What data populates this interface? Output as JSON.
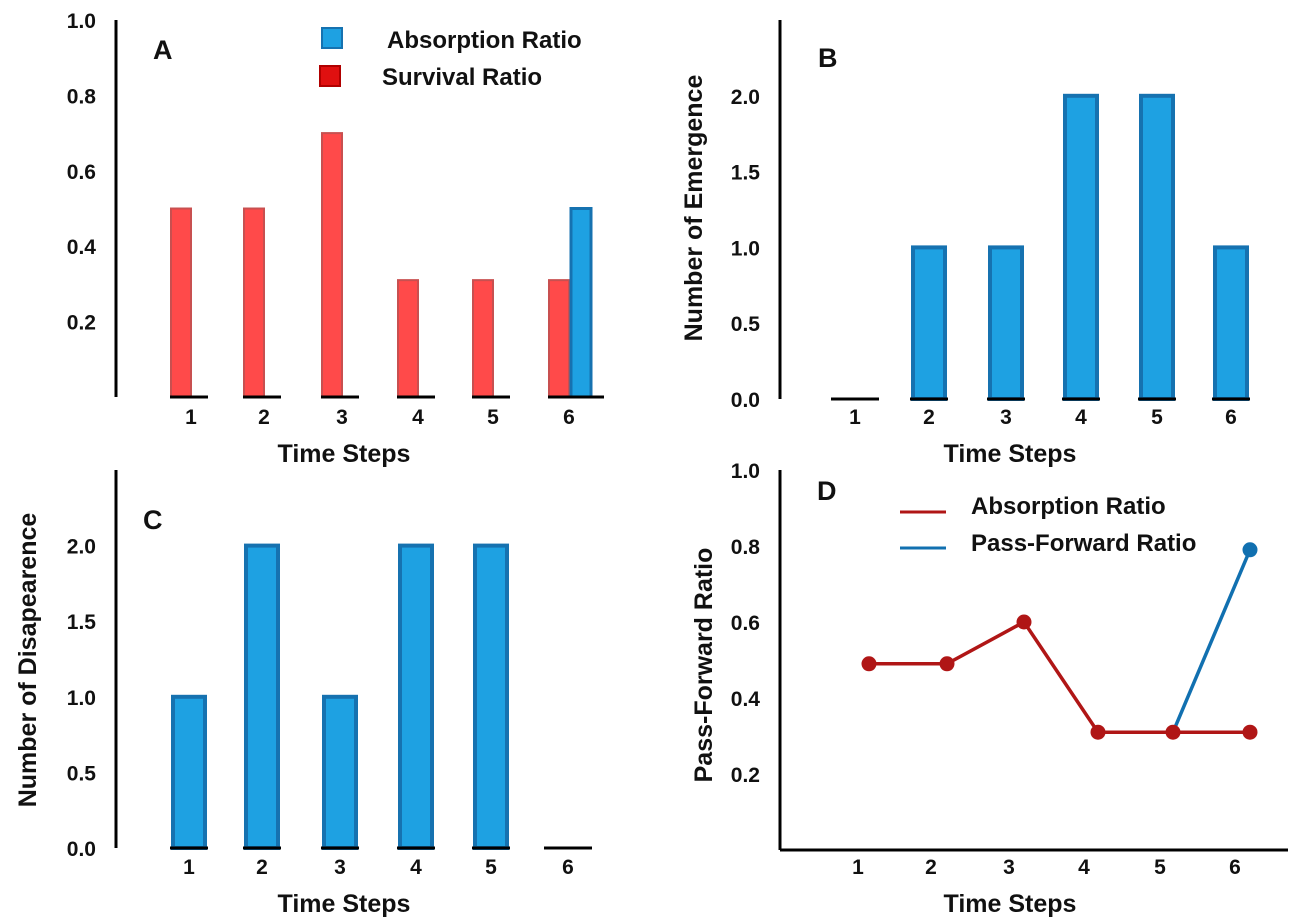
{
  "chart_data": [
    {
      "panel": "A",
      "type": "bar",
      "categories": [
        "1",
        "2",
        "3",
        "4",
        "5",
        "6"
      ],
      "series": [
        {
          "name": "Absorption Ratio",
          "values": [
            0,
            0,
            0,
            0,
            0,
            0.5
          ],
          "color": "#1ea1e2"
        },
        {
          "name": "Survival Ratio",
          "values": [
            0.5,
            0.5,
            0.7,
            0.31,
            0.31,
            0.31
          ],
          "color": "#ff4a4a"
        }
      ],
      "xlabel": "Time Steps",
      "ylabel": "",
      "ylim": [
        0,
        1.0
      ],
      "yticks": [
        "1.0",
        "0.8",
        "0.6",
        "0.4",
        "0.2"
      ],
      "legend": "top-right",
      "grid": false
    },
    {
      "panel": "B",
      "type": "bar",
      "categories": [
        "1",
        "2",
        "3",
        "4",
        "5",
        "6"
      ],
      "series": [
        {
          "name": "",
          "values": [
            0,
            1,
            1,
            2,
            2,
            1
          ],
          "color": "#1ea1e2"
        }
      ],
      "xlabel": "Time Steps",
      "ylabel": "Number of Emergence",
      "ylim": [
        0,
        2.5
      ],
      "yticks": [
        "2.0",
        "1.5",
        "1.0",
        "0.5",
        "0.0"
      ],
      "grid": false
    },
    {
      "panel": "C",
      "type": "bar",
      "categories": [
        "1",
        "2",
        "3",
        "4",
        "5",
        "6"
      ],
      "series": [
        {
          "name": "",
          "values": [
            1,
            2,
            1,
            2,
            2,
            0
          ],
          "color": "#1ea1e2"
        }
      ],
      "xlabel": "Time Steps",
      "ylabel": "Number of Disapearence",
      "ylim": [
        0,
        2.5
      ],
      "yticks": [
        "2.0",
        "1.5",
        "1.0",
        "0.5",
        "0.0"
      ],
      "grid": false
    },
    {
      "panel": "D",
      "type": "line",
      "categories": [
        "1",
        "2",
        "3",
        "4",
        "5",
        "6"
      ],
      "series": [
        {
          "name": "Absorption Ratio",
          "values": [
            0.49,
            0.49,
            0.6,
            0.31,
            0.31,
            0.31
          ],
          "color": "#b01616"
        },
        {
          "name": "Pass-Forward Ratio",
          "values": [
            null,
            null,
            null,
            null,
            0.31,
            0.79
          ],
          "color": "#1170b0"
        }
      ],
      "xlabel": "Time Steps",
      "ylabel": "Pass-Forward Ratio",
      "ylim": [
        0,
        1.0
      ],
      "yticks": [
        "1.0",
        "0.8",
        "0.6",
        "0.4",
        "0.2"
      ],
      "legend": "top-right",
      "grid": false
    }
  ]
}
